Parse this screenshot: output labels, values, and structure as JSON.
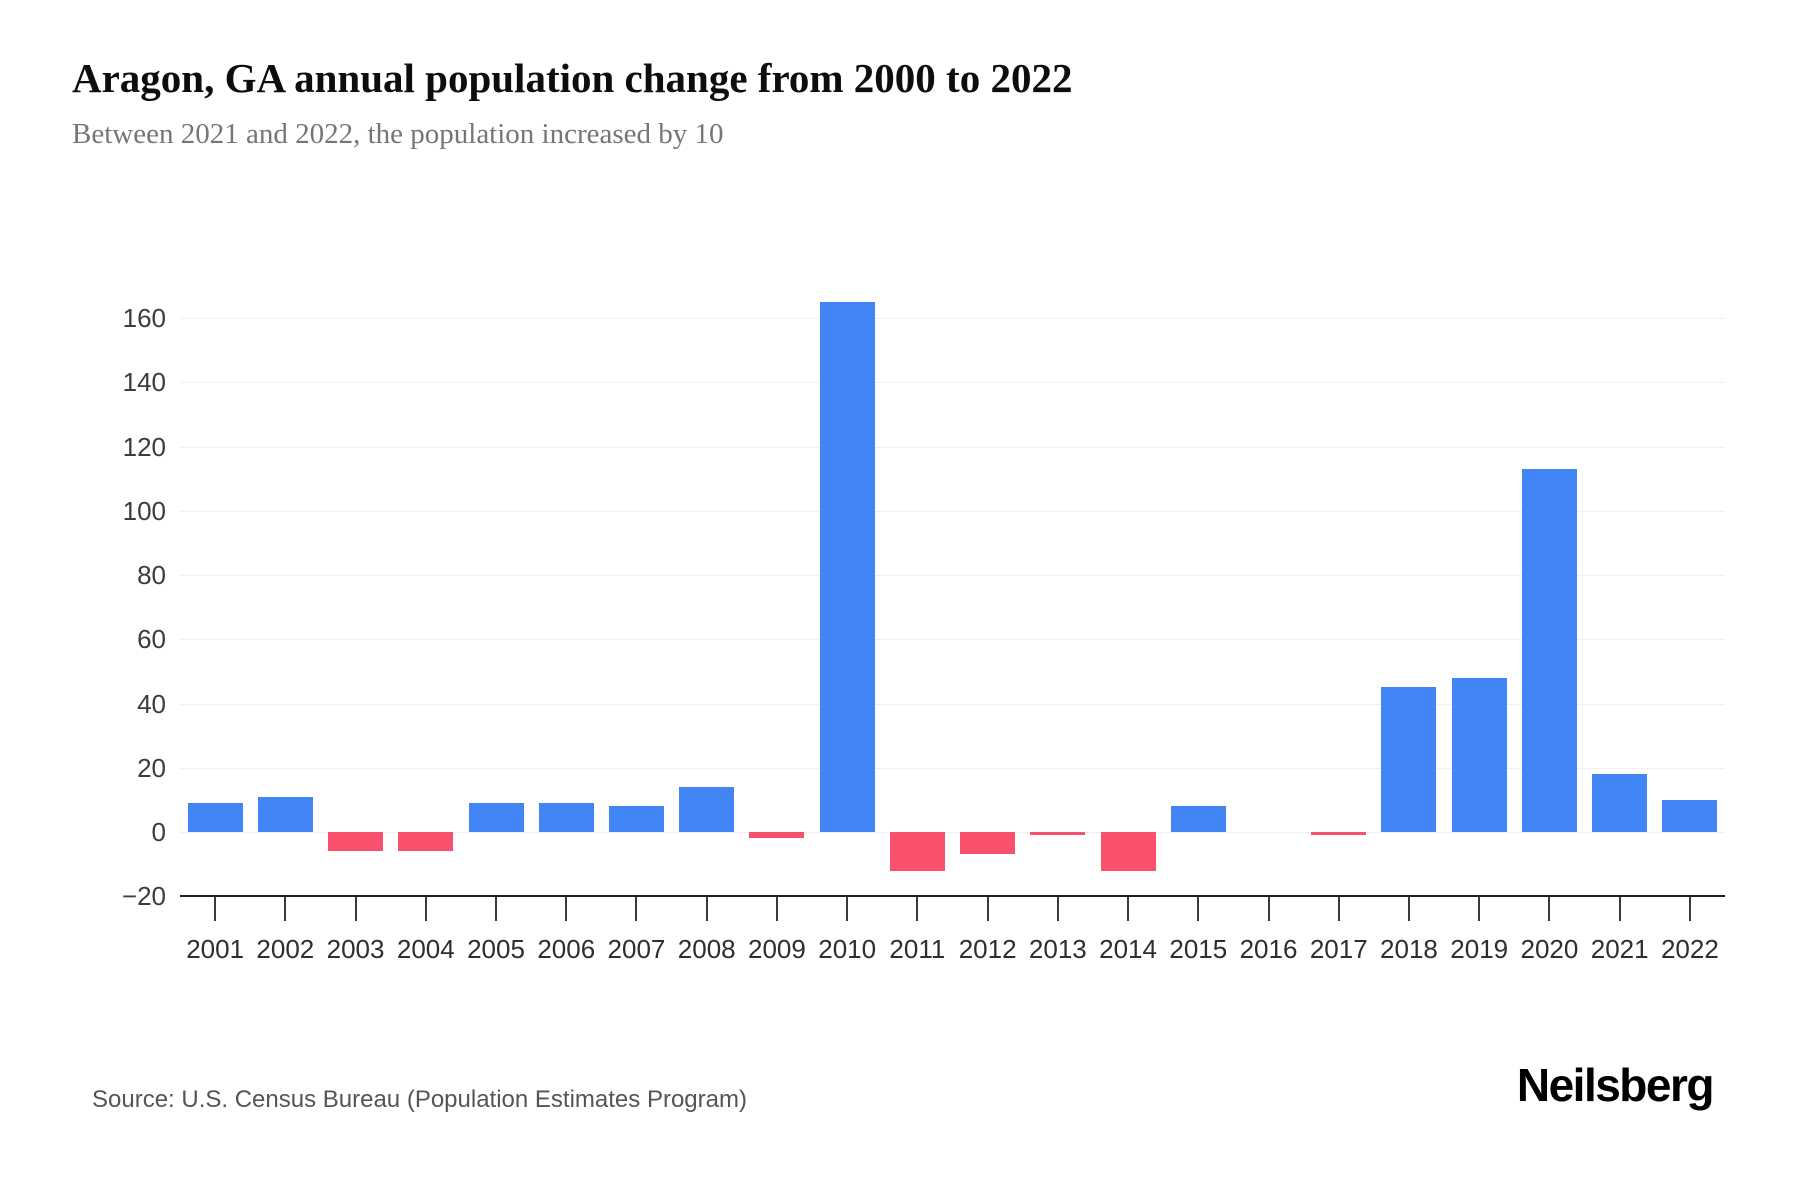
{
  "header": {
    "title": "Aragon, GA annual population change from 2000 to 2022",
    "subtitle": "Between 2021 and 2022, the population increased by 10"
  },
  "footer": {
    "source": "Source: U.S. Census Bureau (Population Estimates Program)",
    "brand": "Neilsberg"
  },
  "chart_data": {
    "type": "bar",
    "title": "Aragon, GA annual population change from 2000 to 2022",
    "subtitle": "Between 2021 and 2022, the population increased by 10",
    "categories": [
      "2001",
      "2002",
      "2003",
      "2004",
      "2005",
      "2006",
      "2007",
      "2008",
      "2009",
      "2010",
      "2011",
      "2012",
      "2013",
      "2014",
      "2015",
      "2016",
      "2017",
      "2018",
      "2019",
      "2020",
      "2021",
      "2022"
    ],
    "values": [
      9,
      11,
      -6,
      -6,
      9,
      9,
      8,
      14,
      -2,
      165,
      -12,
      -7,
      -1,
      -12,
      8,
      0,
      -1,
      45,
      48,
      113,
      18,
      10
    ],
    "yticks": [
      160,
      140,
      120,
      100,
      80,
      60,
      40,
      20,
      0,
      -20
    ],
    "ylim": [
      -20,
      172
    ],
    "grid": true,
    "legend": "none",
    "positive_color": "#4285F4",
    "negative_color": "#F9506E",
    "axis_color": "#1f1f1f",
    "gridline_color": "#f0f0f0"
  }
}
